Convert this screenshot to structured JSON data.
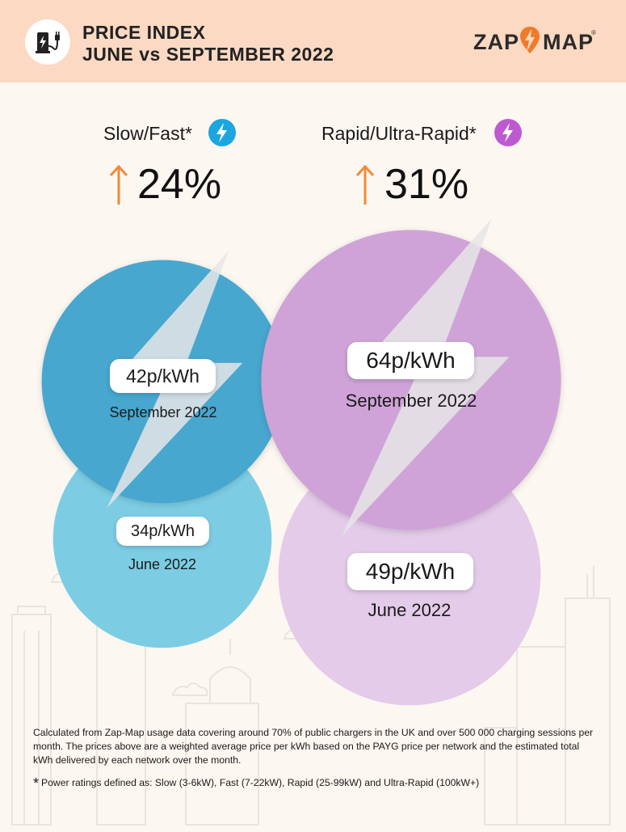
{
  "header": {
    "title_line1": "PRICE INDEX",
    "title_line2": "JUNE vs SEPTEMBER 2022",
    "logo_left": "ZAP",
    "logo_right": "MAP",
    "logo_reg": "®",
    "icon": "ev-charger-icon"
  },
  "colors": {
    "header_bg": "#fcd9c2",
    "slow_sep": "#46a7cf",
    "slow_jun": "#7ccde3",
    "rapid_sep": "#cfa3d8",
    "rapid_jun": "#e4cbe9",
    "arrow": "#f08a3a",
    "slow_icon": "#1ba6df",
    "rapid_icon": "#be5ad1"
  },
  "chart_data": {
    "type": "bubble",
    "groups": [
      {
        "name": "Slow/Fast*",
        "change": "24%",
        "points": [
          {
            "period": "September 2022",
            "value": 42,
            "label": "42p/kWh"
          },
          {
            "period": "June 2022",
            "value": 34,
            "label": "34p/kWh"
          }
        ]
      },
      {
        "name": "Rapid/Ultra-Rapid*",
        "change": "31%",
        "points": [
          {
            "period": "September 2022",
            "value": 64,
            "label": "64p/kWh"
          },
          {
            "period": "June 2022",
            "value": 49,
            "label": "49p/kWh"
          }
        ]
      }
    ]
  },
  "footnote": "Calculated from Zap-Map usage data covering around 70% of public chargers in the UK and over 500 000 charging sessions per month. The prices above are a weighted average price per kWh based on the PAYG price per network and the estimated total kWh delivered by each network over the month.",
  "footnote_star": "*",
  "footnote2": "Power ratings defined as: Slow (3-6kW), Fast (7-22kW), Rapid (25-99kW) and Ultra-Rapid (100kW+)"
}
